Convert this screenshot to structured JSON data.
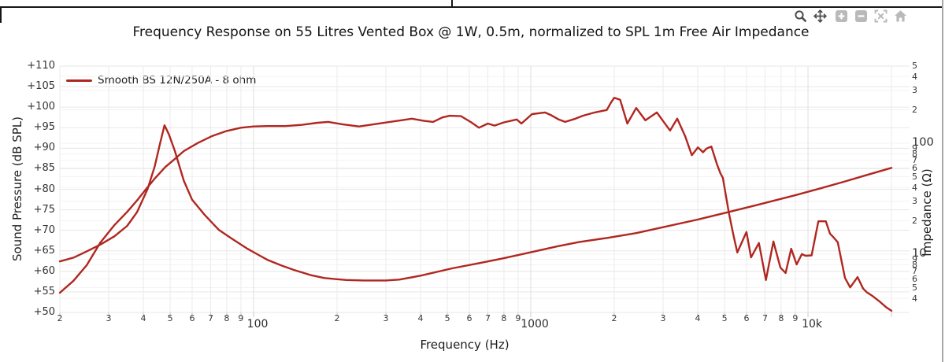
{
  "frame": {
    "top_divider": true
  },
  "toolbar": {
    "buttons": [
      {
        "name": "zoom-lens",
        "tooltip": "Zoom"
      },
      {
        "name": "pan",
        "tooltip": "Pan"
      },
      {
        "name": "zoom-in",
        "tooltip": "Zoom in"
      },
      {
        "name": "zoom-out",
        "tooltip": "Zoom out"
      },
      {
        "name": "fullscreen",
        "tooltip": "Full extent"
      },
      {
        "name": "home",
        "tooltip": "Reset view"
      }
    ]
  },
  "colors": {
    "curve": "#b02720",
    "grid_spl": "#e7e7e7",
    "grid_imp": "#f3f3f3",
    "grid_vert": "#ebebeb",
    "grid_vert_decade": "#dfdfdf",
    "tick_mark": "#c9c9c9",
    "tool_dark": "#4d4d4d",
    "tool_light": "#b9b9b9"
  },
  "chart_data": {
    "type": "line",
    "title": "Frequency Response on 55 Litres Vented Box @ 1W, 0.5m, normalized to SPL 1m Free Air Impedance",
    "legend": {
      "entries": [
        "Smooth BS 12N/250A - 8 ohm"
      ],
      "position": "top-left"
    },
    "grid": true,
    "x_axis": {
      "label": "Frequency (Hz)",
      "scale": "log",
      "min": 20,
      "max": 23000,
      "ticks": [
        {
          "label": "2",
          "f": 20
        },
        {
          "label": "3",
          "f": 30
        },
        {
          "label": "4",
          "f": 40
        },
        {
          "label": "5",
          "f": 50
        },
        {
          "label": "6",
          "f": 60
        },
        {
          "label": "7",
          "f": 70
        },
        {
          "label": "8",
          "f": 80
        },
        {
          "label": "9",
          "f": 90
        },
        {
          "label": "100",
          "f": 100,
          "major": true
        },
        {
          "label": "2",
          "f": 200
        },
        {
          "label": "3",
          "f": 300
        },
        {
          "label": "4",
          "f": 400
        },
        {
          "label": "5",
          "f": 500
        },
        {
          "label": "6",
          "f": 600
        },
        {
          "label": "7",
          "f": 700
        },
        {
          "label": "8",
          "f": 800
        },
        {
          "label": "9",
          "f": 900
        },
        {
          "label": "1000",
          "f": 1000,
          "major": true
        },
        {
          "label": "2",
          "f": 2000
        },
        {
          "label": "3",
          "f": 3000
        },
        {
          "label": "4",
          "f": 4000
        },
        {
          "label": "5",
          "f": 5000
        },
        {
          "label": "6",
          "f": 6000
        },
        {
          "label": "7",
          "f": 7000
        },
        {
          "label": "8",
          "f": 8000
        },
        {
          "label": "9",
          "f": 9000
        },
        {
          "label": "10k",
          "f": 10000,
          "major": true
        }
      ],
      "unlabeled_gridlines": [
        20000
      ]
    },
    "y_left_axis": {
      "label": "Sound Pressure (dB SPL)",
      "scale": "linear",
      "min": 50,
      "max": 110,
      "step": 5,
      "ticks": [
        {
          "label": "+110",
          "v": 110
        },
        {
          "label": "+105",
          "v": 105
        },
        {
          "label": "+100",
          "v": 100
        },
        {
          "label": "+95",
          "v": 95
        },
        {
          "label": "+90",
          "v": 90
        },
        {
          "label": "+85",
          "v": 85
        },
        {
          "label": "+80",
          "v": 80
        },
        {
          "label": "+75",
          "v": 75
        },
        {
          "label": "+70",
          "v": 70
        },
        {
          "label": "+65",
          "v": 65
        },
        {
          "label": "+60",
          "v": 60
        },
        {
          "label": "+55",
          "v": 55
        },
        {
          "label": "+50",
          "v": 50
        }
      ]
    },
    "y_right_axis": {
      "label": "Impedance (Ω)",
      "scale": "log",
      "min": 3,
      "max": 500,
      "ticks": [
        {
          "label": "5",
          "v": 500
        },
        {
          "label": "4",
          "v": 400
        },
        {
          "label": "3",
          "v": 300
        },
        {
          "label": "2",
          "v": 200
        },
        {
          "label": "100",
          "v": 100,
          "major": true
        },
        {
          "label": "9",
          "v": 90
        },
        {
          "label": "8",
          "v": 80
        },
        {
          "label": "7",
          "v": 70
        },
        {
          "label": "6",
          "v": 60
        },
        {
          "label": "5",
          "v": 50
        },
        {
          "label": "4",
          "v": 40
        },
        {
          "label": "3",
          "v": 30
        },
        {
          "label": "2",
          "v": 20
        },
        {
          "label": "10",
          "v": 10,
          "major": true
        },
        {
          "label": "9",
          "v": 9
        },
        {
          "label": "8",
          "v": 8
        },
        {
          "label": "7",
          "v": 7
        },
        {
          "label": "6",
          "v": 6
        },
        {
          "label": "5",
          "v": 5
        },
        {
          "label": "4",
          "v": 4
        }
      ]
    },
    "series": [
      {
        "name": "Smooth BS 12N/250A - 8 ohm — SPL",
        "axis": "left",
        "unit": "dB SPL",
        "color": "#b02720",
        "points": [
          [
            20,
            54.8
          ],
          [
            22.4,
            57.7
          ],
          [
            25,
            61.5
          ],
          [
            28,
            67.0
          ],
          [
            31.5,
            71.3
          ],
          [
            35,
            74.5
          ],
          [
            38,
            77.3
          ],
          [
            41,
            80.1
          ],
          [
            44,
            82.6
          ],
          [
            48,
            85.4
          ],
          [
            52,
            87.4
          ],
          [
            56,
            89.3
          ],
          [
            63,
            91.3
          ],
          [
            71,
            93.0
          ],
          [
            80,
            94.2
          ],
          [
            90,
            95.0
          ],
          [
            100,
            95.3
          ],
          [
            112,
            95.4
          ],
          [
            130,
            95.4
          ],
          [
            150,
            95.7
          ],
          [
            170,
            96.2
          ],
          [
            186,
            96.4
          ],
          [
            210,
            95.8
          ],
          [
            240,
            95.3
          ],
          [
            270,
            95.8
          ],
          [
            310,
            96.4
          ],
          [
            340,
            96.8
          ],
          [
            372,
            97.2
          ],
          [
            410,
            96.7
          ],
          [
            444,
            96.4
          ],
          [
            480,
            97.5
          ],
          [
            510,
            97.9
          ],
          [
            560,
            97.8
          ],
          [
            610,
            96.3
          ],
          [
            650,
            95.0
          ],
          [
            700,
            96.0
          ],
          [
            740,
            95.5
          ],
          [
            800,
            96.3
          ],
          [
            890,
            97.0
          ],
          [
            925,
            96.0
          ],
          [
            1010,
            98.3
          ],
          [
            1125,
            98.7
          ],
          [
            1180,
            98.1
          ],
          [
            1260,
            97.0
          ],
          [
            1330,
            96.4
          ],
          [
            1450,
            97.2
          ],
          [
            1540,
            97.9
          ],
          [
            1700,
            98.7
          ],
          [
            1880,
            99.3
          ],
          [
            1950,
            101.2
          ],
          [
            2000,
            102.3
          ],
          [
            2100,
            101.8
          ],
          [
            2230,
            96.0
          ],
          [
            2400,
            99.8
          ],
          [
            2590,
            96.8
          ],
          [
            2850,
            98.7
          ],
          [
            3180,
            94.3
          ],
          [
            3375,
            97.2
          ],
          [
            3600,
            93.0
          ],
          [
            3810,
            88.3
          ],
          [
            4010,
            90.2
          ],
          [
            4180,
            89.0
          ],
          [
            4300,
            89.9
          ],
          [
            4480,
            90.4
          ],
          [
            4700,
            86.0
          ],
          [
            4830,
            83.9
          ],
          [
            4930,
            82.8
          ],
          [
            5180,
            74.3
          ],
          [
            5390,
            68.6
          ],
          [
            5560,
            64.6
          ],
          [
            6000,
            69.6
          ],
          [
            6230,
            63.4
          ],
          [
            6650,
            66.9
          ],
          [
            7050,
            57.9
          ],
          [
            7500,
            67.3
          ],
          [
            7950,
            60.9
          ],
          [
            8300,
            59.6
          ],
          [
            8700,
            65.5
          ],
          [
            9100,
            61.7
          ],
          [
            9500,
            64.2
          ],
          [
            9800,
            63.8
          ],
          [
            10300,
            63.9
          ],
          [
            10900,
            72.2
          ],
          [
            11600,
            72.2
          ],
          [
            12000,
            69.2
          ],
          [
            12400,
            68.2
          ],
          [
            12800,
            67.1
          ],
          [
            13600,
            58.4
          ],
          [
            14200,
            56.1
          ],
          [
            15100,
            58.6
          ],
          [
            15800,
            55.8
          ],
          [
            16300,
            54.9
          ],
          [
            17000,
            54.1
          ],
          [
            18100,
            52.7
          ],
          [
            19100,
            51.3
          ],
          [
            20000,
            50.4
          ]
        ]
      },
      {
        "name": "Smooth BS 12N/250A - 8 ohm — Free Air Impedance",
        "axis": "right",
        "unit": "ohm",
        "color": "#b02720",
        "points": [
          [
            20,
            8.6
          ],
          [
            22.4,
            9.3
          ],
          [
            25,
            10.6
          ],
          [
            28,
            12.2
          ],
          [
            31.5,
            14.5
          ],
          [
            35,
            18.0
          ],
          [
            38,
            24.0
          ],
          [
            41.5,
            39.0
          ],
          [
            44,
            62.0
          ],
          [
            46,
            100.0
          ],
          [
            47.7,
            145.0
          ],
          [
            49.5,
            120.0
          ],
          [
            52,
            85.0
          ],
          [
            56,
            46.0
          ],
          [
            60,
            31.0
          ],
          [
            66.6,
            22.6
          ],
          [
            75,
            16.5
          ],
          [
            83,
            13.9
          ],
          [
            95,
            11.2
          ],
          [
            103,
            10.0
          ],
          [
            112,
            8.9
          ],
          [
            126,
            7.9
          ],
          [
            140,
            7.2
          ],
          [
            160,
            6.5
          ],
          [
            180,
            6.1
          ],
          [
            200,
            5.95
          ],
          [
            216,
            5.85
          ],
          [
            250,
            5.8
          ],
          [
            300,
            5.8
          ],
          [
            335,
            5.9
          ],
          [
            400,
            6.4
          ],
          [
            520,
            7.45
          ],
          [
            650,
            8.3
          ],
          [
            800,
            9.2
          ],
          [
            1000,
            10.4
          ],
          [
            1250,
            11.8
          ],
          [
            1500,
            12.9
          ],
          [
            1880,
            14.0
          ],
          [
            2400,
            15.5
          ],
          [
            3000,
            17.5
          ],
          [
            4000,
            20.5
          ],
          [
            5000,
            23.5
          ],
          [
            6450,
            27.5
          ],
          [
            7400,
            30.0
          ],
          [
            9000,
            34.0
          ],
          [
            11000,
            39.0
          ],
          [
            13500,
            45.0
          ],
          [
            16000,
            51.0
          ],
          [
            20000,
            60.0
          ]
        ]
      }
    ]
  }
}
